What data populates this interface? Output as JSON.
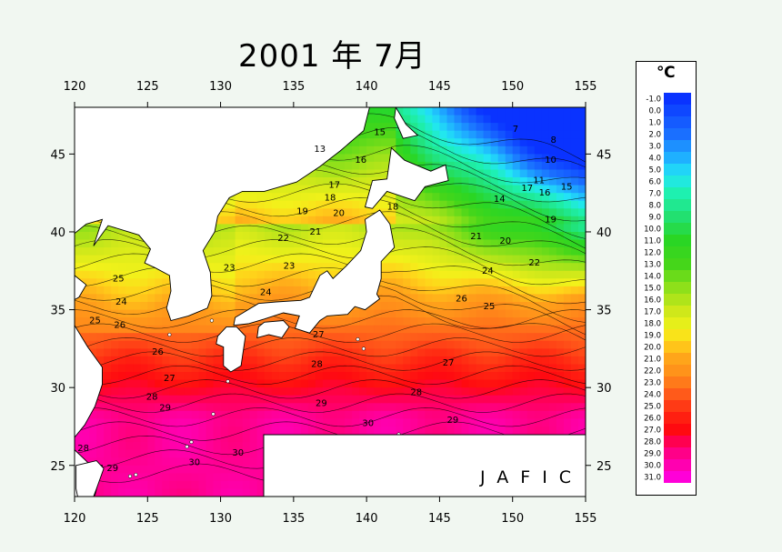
{
  "title": "2001 年 7月",
  "credit": "JAFIC",
  "legend": {
    "unit": "℃",
    "labels": [
      "-1.0",
      "0.0",
      "1.0",
      "2.0",
      "3.0",
      "4.0",
      "5.0",
      "6.0",
      "7.0",
      "8.0",
      "9.0",
      "10.0",
      "11.0",
      "12.0",
      "13.0",
      "14.0",
      "15.0",
      "16.0",
      "17.0",
      "18.0",
      "19.0",
      "20.0",
      "21.0",
      "22.0",
      "23.0",
      "24.0",
      "25.0",
      "26.0",
      "27.0",
      "28.0",
      "29.0",
      "30.0",
      "31.0"
    ]
  },
  "axes": {
    "x_ticks": [
      "120",
      "125",
      "130",
      "135",
      "140",
      "145",
      "150",
      "155"
    ],
    "y_ticks": [
      "45",
      "40",
      "35",
      "30",
      "25"
    ]
  },
  "chart_data": {
    "type": "heatmap",
    "title": "2001 年 7月",
    "x_range": [
      120,
      155
    ],
    "y_range": [
      23,
      48
    ],
    "x_ticks": [
      120,
      125,
      130,
      135,
      140,
      145,
      150,
      155
    ],
    "y_ticks": [
      25,
      30,
      35,
      40,
      45
    ],
    "legend_range": [
      -1,
      31
    ],
    "legend_step": 1,
    "contour_labels": [
      {
        "lon": 140.9,
        "lat": 46.4,
        "text": "15"
      },
      {
        "lon": 136.8,
        "lat": 45.3,
        "text": "13"
      },
      {
        "lon": 139.6,
        "lat": 44.6,
        "text": "16"
      },
      {
        "lon": 137.8,
        "lat": 43.0,
        "text": "17"
      },
      {
        "lon": 137.5,
        "lat": 42.2,
        "text": "18"
      },
      {
        "lon": 135.6,
        "lat": 41.3,
        "text": "19"
      },
      {
        "lon": 138.1,
        "lat": 41.2,
        "text": "20"
      },
      {
        "lon": 136.5,
        "lat": 40.0,
        "text": "21"
      },
      {
        "lon": 134.3,
        "lat": 39.6,
        "text": "22"
      },
      {
        "lon": 130.6,
        "lat": 37.7,
        "text": "23"
      },
      {
        "lon": 134.7,
        "lat": 37.8,
        "text": "23"
      },
      {
        "lon": 133.1,
        "lat": 36.1,
        "text": "24"
      },
      {
        "lon": 123.0,
        "lat": 37.0,
        "text": "25"
      },
      {
        "lon": 123.2,
        "lat": 35.5,
        "text": "24"
      },
      {
        "lon": 121.4,
        "lat": 34.3,
        "text": "25"
      },
      {
        "lon": 123.1,
        "lat": 34.0,
        "text": "26"
      },
      {
        "lon": 125.7,
        "lat": 32.3,
        "text": "26"
      },
      {
        "lon": 126.5,
        "lat": 30.6,
        "text": "27"
      },
      {
        "lon": 125.3,
        "lat": 29.4,
        "text": "28"
      },
      {
        "lon": 126.2,
        "lat": 28.7,
        "text": "29"
      },
      {
        "lon": 120.6,
        "lat": 26.1,
        "text": "28"
      },
      {
        "lon": 122.6,
        "lat": 24.8,
        "text": "29"
      },
      {
        "lon": 128.2,
        "lat": 25.2,
        "text": "30"
      },
      {
        "lon": 131.2,
        "lat": 25.8,
        "text": "30"
      },
      {
        "lon": 136.7,
        "lat": 33.4,
        "text": "27"
      },
      {
        "lon": 136.6,
        "lat": 31.5,
        "text": "28"
      },
      {
        "lon": 136.9,
        "lat": 29.0,
        "text": "29"
      },
      {
        "lon": 140.1,
        "lat": 27.7,
        "text": "30"
      },
      {
        "lon": 143.4,
        "lat": 29.7,
        "text": "28"
      },
      {
        "lon": 145.9,
        "lat": 27.9,
        "text": "29"
      },
      {
        "lon": 145.6,
        "lat": 31.6,
        "text": "27"
      },
      {
        "lon": 146.5,
        "lat": 35.7,
        "text": "26"
      },
      {
        "lon": 148.4,
        "lat": 35.2,
        "text": "25"
      },
      {
        "lon": 148.3,
        "lat": 37.5,
        "text": "24"
      },
      {
        "lon": 151.5,
        "lat": 38.0,
        "text": "22"
      },
      {
        "lon": 147.5,
        "lat": 39.7,
        "text": "21"
      },
      {
        "lon": 149.5,
        "lat": 39.4,
        "text": "20"
      },
      {
        "lon": 152.6,
        "lat": 40.8,
        "text": "19"
      },
      {
        "lon": 149.1,
        "lat": 42.1,
        "text": "14"
      },
      {
        "lon": 151.0,
        "lat": 42.8,
        "text": "17"
      },
      {
        "lon": 152.2,
        "lat": 42.5,
        "text": "16"
      },
      {
        "lon": 153.7,
        "lat": 42.9,
        "text": "15"
      },
      {
        "lon": 151.8,
        "lat": 43.3,
        "text": "11"
      },
      {
        "lon": 152.6,
        "lat": 44.6,
        "text": "10"
      },
      {
        "lon": 152.8,
        "lat": 45.9,
        "text": "8"
      },
      {
        "lon": 141.8,
        "lat": 41.6,
        "text": "18"
      },
      {
        "lon": 150.2,
        "lat": 46.6,
        "text": "7"
      }
    ]
  },
  "colors": {
    "land": "#ffffff",
    "coast": "#000000",
    "background": "#f1f7f1"
  }
}
